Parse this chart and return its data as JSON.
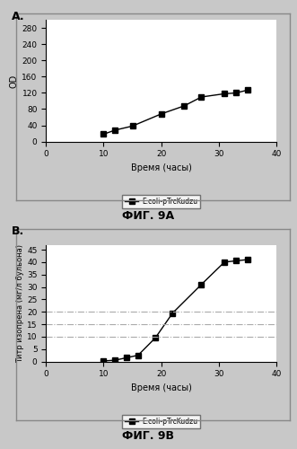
{
  "fig_A": {
    "x": [
      10,
      12,
      15,
      20,
      24,
      27,
      31,
      33,
      35
    ],
    "y": [
      18,
      28,
      38,
      68,
      88,
      110,
      118,
      120,
      127
    ],
    "xlabel": "Время (часы)",
    "ylabel": "OD",
    "xlim": [
      0,
      40
    ],
    "ylim": [
      0,
      300
    ],
    "yticks": [
      0,
      40,
      80,
      120,
      160,
      200,
      240,
      280
    ],
    "xticks": [
      0,
      10,
      20,
      30,
      40
    ],
    "legend_label": "E.coli-pTrcKudzu",
    "title": "ФИГ. 9А"
  },
  "fig_B": {
    "x": [
      10,
      12,
      14,
      16,
      19,
      22,
      27,
      31,
      33,
      35
    ],
    "y": [
      0.2,
      0.5,
      1.5,
      2.5,
      9.5,
      19.5,
      31,
      40,
      40.5,
      41
    ],
    "hlines": [
      10,
      15,
      20
    ],
    "xlabel": "Время (часы)",
    "ylabel": "Титр изопрена (мг/л бульона)",
    "xlim": [
      0,
      40
    ],
    "ylim": [
      0,
      47
    ],
    "yticks": [
      0,
      5,
      10,
      15,
      20,
      25,
      30,
      35,
      40,
      45
    ],
    "xticks": [
      0,
      10,
      20,
      30,
      40
    ],
    "legend_label": "E.coli-pTrcKudzu",
    "title": "ФИГ. 9В"
  },
  "line_color": "#000000",
  "marker": "s",
  "marker_size": 4,
  "background_color": "#c8c8c8",
  "plot_bg_color": "#ffffff",
  "outer_box_color": "#888888",
  "label_A": "A.",
  "label_B": "B.",
  "hline_color": "#aaaaaa",
  "hline_style": "-."
}
